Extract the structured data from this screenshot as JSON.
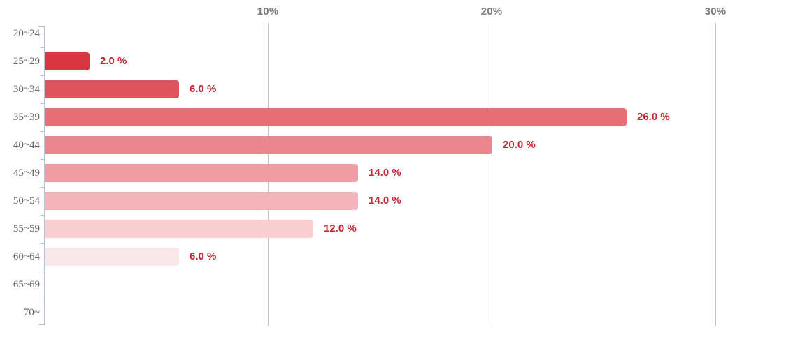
{
  "chart_data": {
    "type": "bar",
    "orientation": "horizontal",
    "title": "",
    "xlabel": "",
    "ylabel": "",
    "categories": [
      "20~24",
      "25~29",
      "30~34",
      "35~39",
      "40~44",
      "45~49",
      "50~54",
      "55~59",
      "60~64",
      "65~69",
      "70~"
    ],
    "values": [
      0,
      2.0,
      6.0,
      26.0,
      20.0,
      14.0,
      14.0,
      12.0,
      6.0,
      0,
      0
    ],
    "value_labels": [
      "",
      "2.0 %",
      "6.0 %",
      "26.0 %",
      "20.0 %",
      "14.0 %",
      "14.0 %",
      "12.0 %",
      "6.0 %",
      "",
      ""
    ],
    "bar_colors": [
      "",
      "#d9363f",
      "#e0525c",
      "#e76e77",
      "#ec858d",
      "#f09da3",
      "#f4b5ba",
      "#f8ced2",
      "#fbe7e9",
      "",
      ""
    ],
    "x_axis": {
      "position": "top",
      "ticks": [
        10,
        20,
        30
      ],
      "tick_labels": [
        "10%",
        "20%",
        "30%"
      ],
      "range": [
        0,
        33.2
      ]
    },
    "grid": true,
    "legend": false,
    "colors": {
      "value_label": "#c32531",
      "category_label": "#666666",
      "axis_tick_label": "#7e7e7e",
      "gridline": "#c2c2c2",
      "axis_line": "#b8c3cf",
      "background": "#ffffff"
    }
  }
}
